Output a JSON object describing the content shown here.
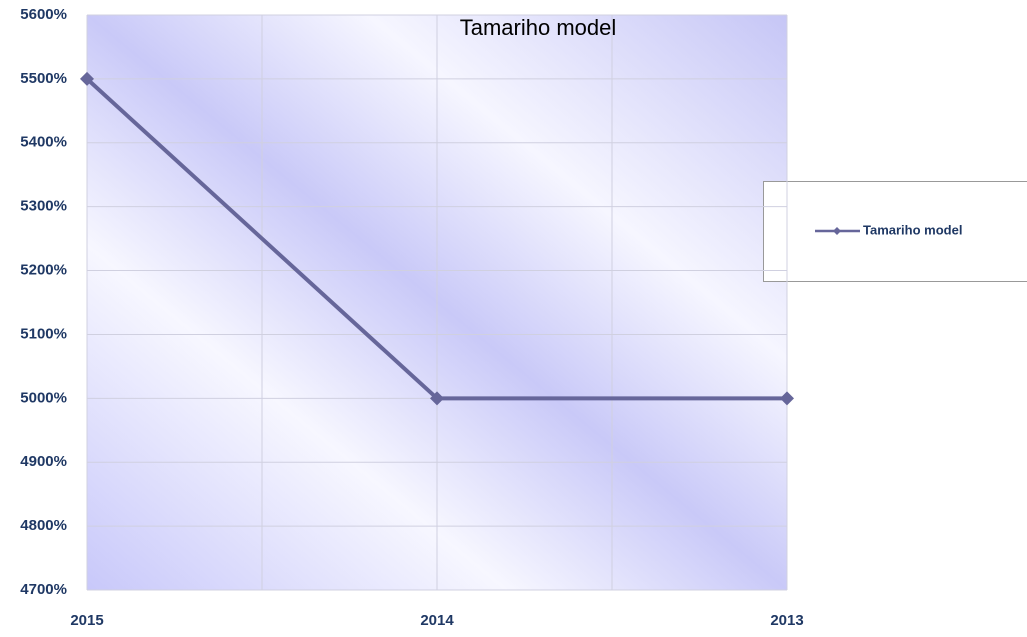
{
  "chart_data": {
    "type": "line",
    "title": "Tamariho model",
    "categories": [
      "2015",
      "2014",
      "2013"
    ],
    "series": [
      {
        "name": "Tamariho model",
        "color": "#66669a",
        "values": [
          5500,
          5000,
          5000
        ]
      }
    ],
    "ylim": [
      4700,
      5600
    ],
    "yticks": [
      {
        "value": 4700,
        "label": "4700%"
      },
      {
        "value": 4800,
        "label": "4800%"
      },
      {
        "value": 4900,
        "label": "4900%"
      },
      {
        "value": 5000,
        "label": "5000%"
      },
      {
        "value": 5100,
        "label": "5100%"
      },
      {
        "value": 5200,
        "label": "5200%"
      },
      {
        "value": 5300,
        "label": "5300%"
      },
      {
        "value": 5400,
        "label": "5400%"
      },
      {
        "value": 5500,
        "label": "5500%"
      },
      {
        "value": 5600,
        "label": "5600%"
      }
    ],
    "grid": true,
    "legend": "right"
  }
}
